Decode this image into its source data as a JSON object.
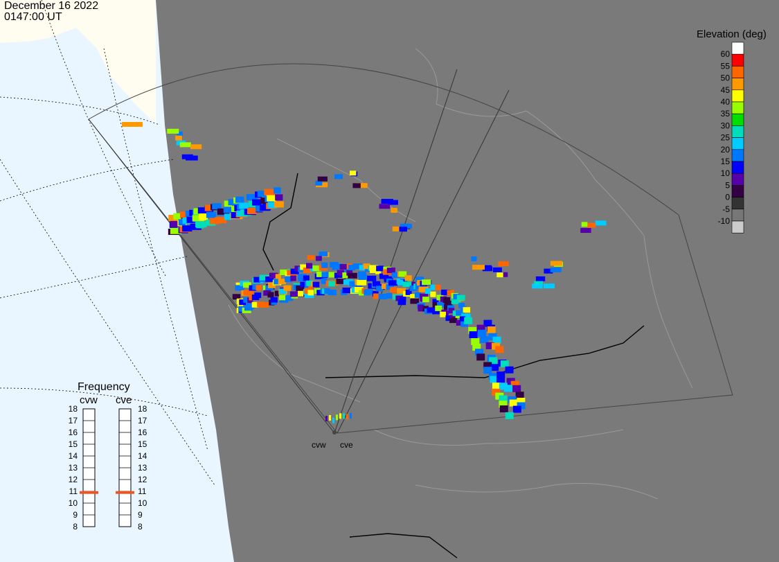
{
  "header": {
    "date": "December 16 2022",
    "time": "0147:00 UT"
  },
  "legend": {
    "title": "Elevation (deg)",
    "entries": [
      {
        "label": "60",
        "color": "#ffffff"
      },
      {
        "label": "55",
        "color": "#ff0000"
      },
      {
        "label": "50",
        "color": "#ff6600"
      },
      {
        "label": "45",
        "color": "#ff9900"
      },
      {
        "label": "40",
        "color": "#ffff00"
      },
      {
        "label": "35",
        "color": "#99ff00"
      },
      {
        "label": "30",
        "color": "#00dd00"
      },
      {
        "label": "25",
        "color": "#00ddbb"
      },
      {
        "label": "20",
        "color": "#00ccff"
      },
      {
        "label": "15",
        "color": "#0077ff"
      },
      {
        "label": "10",
        "color": "#0000ff"
      },
      {
        "label": "5",
        "color": "#5500aa"
      },
      {
        "label": "0",
        "color": "#330044"
      },
      {
        "label": "-5",
        "color": "#333333"
      },
      {
        "label": "-10",
        "color": "#777777"
      },
      {
        "label": "",
        "color": "#cccccc"
      }
    ]
  },
  "frequency": {
    "title": "Frequency",
    "radars": [
      {
        "name": "cvw",
        "value": 10.9
      },
      {
        "name": "cve",
        "value": 10.9
      }
    ],
    "ticks": [
      "18",
      "17",
      "16",
      "15",
      "14",
      "13",
      "12",
      "11",
      "10",
      "9",
      "8"
    ]
  },
  "sites": [
    {
      "name": "cvw"
    },
    {
      "name": "cve"
    }
  ],
  "colors": {
    "land_day": "#fefdf0",
    "ocean_day": "#eaf6ff",
    "night": "#7a7a7a",
    "freq_marker": "#ee5522"
  }
}
